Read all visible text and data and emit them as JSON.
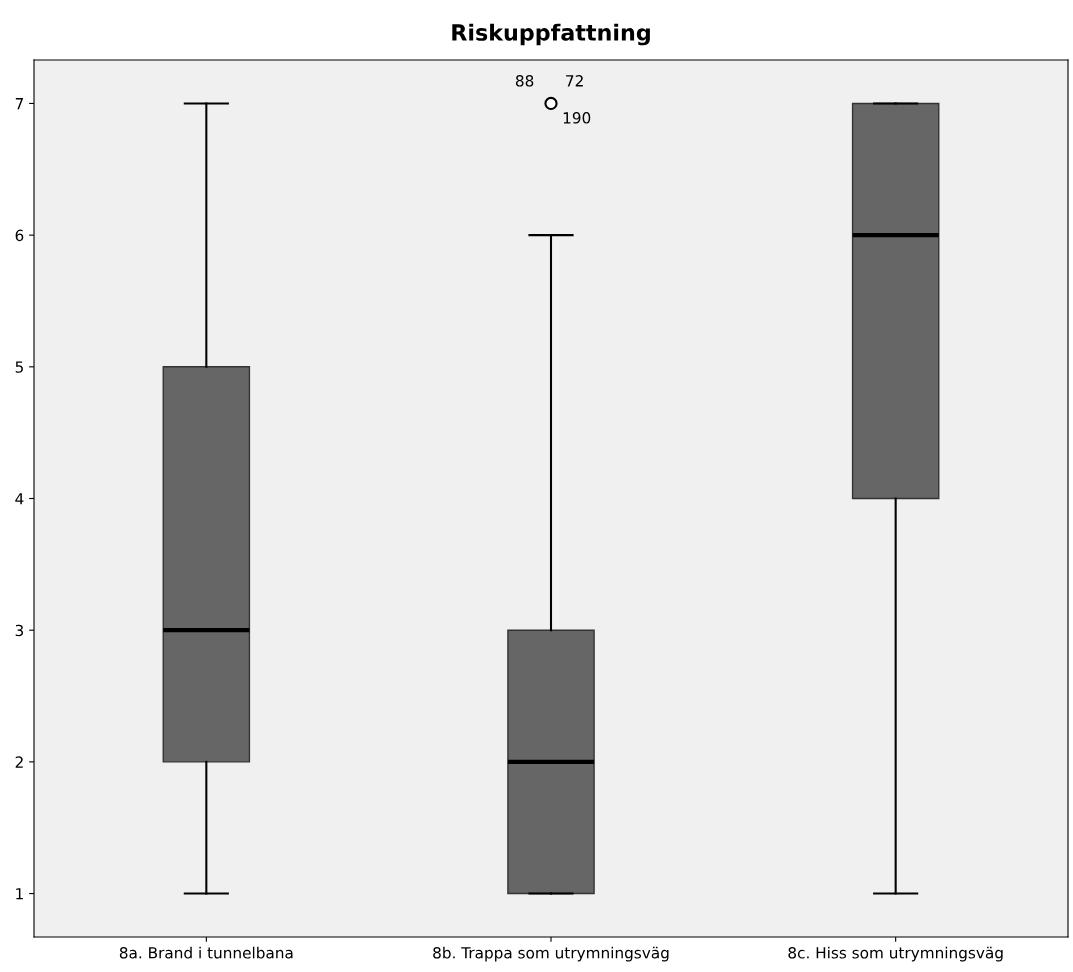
{
  "chart_data": {
    "type": "box",
    "title": "Riskuppfattning",
    "categories": [
      "8a. Brand i tunnelbana",
      "8b. Trappa som utrymningsväg",
      "8c. Hiss som utrymningsväg"
    ],
    "boxes": [
      {
        "low": 1,
        "q1": 2,
        "median": 3,
        "q3": 5,
        "high": 7
      },
      {
        "low": 1,
        "q1": 1,
        "median": 2,
        "q3": 3,
        "high": 6,
        "outliers": [
          7
        ]
      },
      {
        "low": 1,
        "q1": 4,
        "median": 6,
        "q3": 7,
        "high": 7
      }
    ],
    "color": "#666666",
    "ylim": [
      0.67,
      7.33
    ],
    "yticks": [
      1,
      2,
      3,
      4,
      5,
      6,
      7
    ],
    "grid": false,
    "annotations": [
      "88",
      "72",
      "190"
    ]
  }
}
